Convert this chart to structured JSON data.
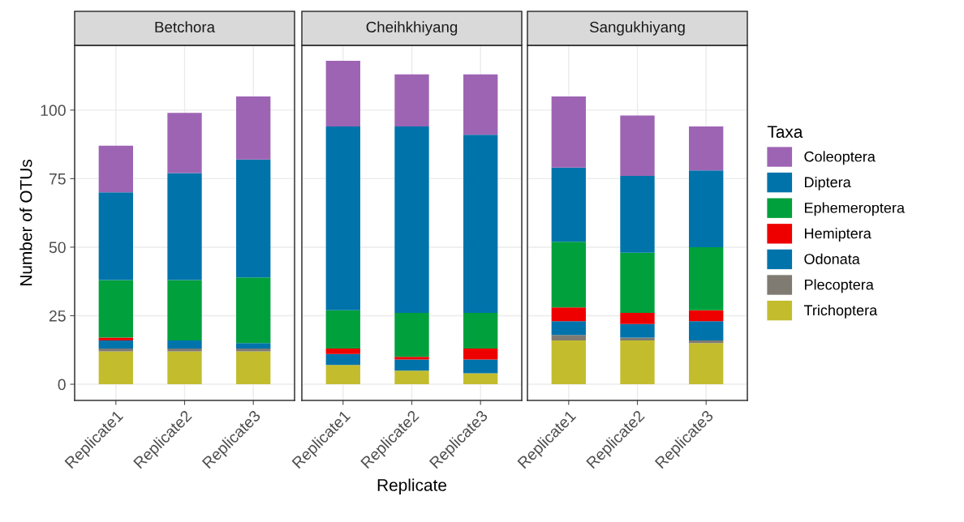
{
  "chart_data": [
    {
      "type": "bar",
      "stacked": true,
      "title": "Betchora",
      "ylabel": "Number of OTUs",
      "categories": [
        "Replicate1",
        "Replicate2",
        "Replicate3"
      ],
      "ylim": [
        -5.9,
        123.6
      ],
      "yticks": [
        0,
        25,
        50,
        75,
        100
      ],
      "grid": true,
      "legend": false,
      "series": [
        {
          "color": "#c3bd2e",
          "values": [
            12,
            12,
            12
          ]
        },
        {
          "color": "#7f7b73",
          "values": [
            1,
            1,
            1
          ]
        },
        {
          "color": "#0073ab",
          "values": [
            3,
            3,
            2
          ]
        },
        {
          "color": "#ee0000",
          "values": [
            1,
            0,
            0
          ]
        },
        {
          "color": "#00a03c",
          "values": [
            21,
            22,
            24
          ]
        },
        {
          "color": "#0073ab",
          "values": [
            32,
            39,
            43
          ]
        },
        {
          "color": "#9e64b4",
          "values": [
            17,
            22,
            23
          ]
        }
      ]
    },
    {
      "type": "bar",
      "stacked": true,
      "title": "Cheihkhiyang",
      "xlabel": "Replicate",
      "categories": [
        "Replicate1",
        "Replicate2",
        "Replicate3"
      ],
      "ylim": [
        -5.9,
        123.6
      ],
      "yticks": [
        0,
        25,
        50,
        75,
        100
      ],
      "tick_labels": "x",
      "grid": true,
      "legend": false,
      "series": [
        {
          "color": "#c3bd2e",
          "values": [
            7,
            5,
            4
          ]
        },
        {
          "color": "#7f7b73",
          "values": [
            0,
            0,
            0
          ]
        },
        {
          "color": "#0073ab",
          "values": [
            4,
            4,
            5
          ]
        },
        {
          "color": "#ee0000",
          "values": [
            2,
            1,
            4
          ]
        },
        {
          "color": "#00a03c",
          "values": [
            14,
            16,
            13
          ]
        },
        {
          "color": "#0073ab",
          "values": [
            67,
            68,
            65
          ]
        },
        {
          "color": "#9e64b4",
          "values": [
            24,
            19,
            22
          ]
        }
      ]
    },
    {
      "type": "bar",
      "stacked": true,
      "title": "Sangukhiyang",
      "categories": [
        "Replicate1",
        "Replicate2",
        "Replicate3"
      ],
      "ylim": [
        -5.9,
        123.6
      ],
      "yticks": [
        0,
        25,
        50,
        75,
        100
      ],
      "tick_labels": "x",
      "grid": true,
      "legend": "right",
      "legend_title": "Taxa",
      "series": [
        {
          "name": "Trichoptera",
          "color": "#c3bd2e",
          "values": [
            16,
            16,
            15
          ]
        },
        {
          "name": "Plecoptera",
          "color": "#7f7b73",
          "values": [
            2,
            1,
            1
          ]
        },
        {
          "name": "Odonata",
          "color": "#0073ab",
          "values": [
            5,
            5,
            7
          ]
        },
        {
          "name": "Hemiptera",
          "color": "#ee0000",
          "values": [
            5,
            4,
            4
          ]
        },
        {
          "name": "Ephemeroptera",
          "color": "#00a03c",
          "values": [
            24,
            22,
            23
          ]
        },
        {
          "name": "Diptera",
          "color": "#0073ab",
          "values": [
            27,
            28,
            28
          ]
        },
        {
          "name": "Coleoptera",
          "color": "#9e64b4",
          "values": [
            26,
            22,
            16
          ]
        }
      ]
    }
  ]
}
